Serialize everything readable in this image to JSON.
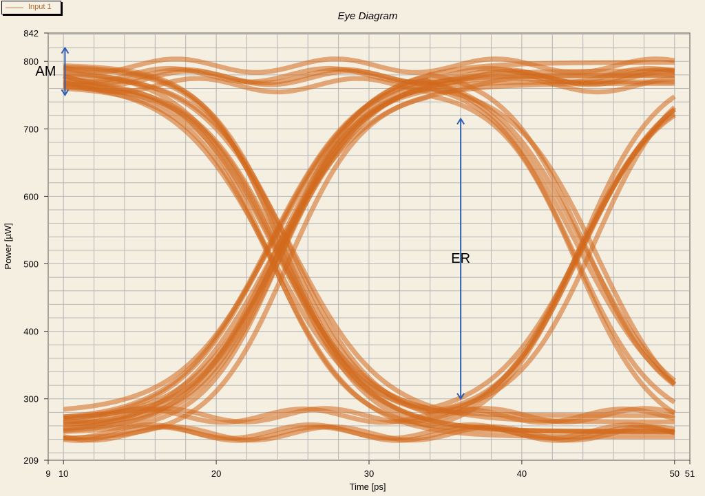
{
  "legend": {
    "entry": "Input 1"
  },
  "chart_data": {
    "type": "line",
    "title": "Eye Diagram",
    "xlabel": "Time [ps]",
    "ylabel": "Power [µW]",
    "xlim": [
      9,
      51
    ],
    "ylim": [
      209,
      842
    ],
    "x_ticks": [
      9,
      10,
      20,
      30,
      40,
      50,
      51
    ],
    "y_ticks": [
      209,
      300,
      400,
      500,
      600,
      700,
      800,
      842
    ],
    "grid": true,
    "series": [
      {
        "name": "Input 1",
        "color": "#d2691e",
        "level_one": 780,
        "level_zero": 260,
        "crossing_times": [
          24.2,
          44.2
        ],
        "crossing_level": 480
      }
    ],
    "annotations": [
      {
        "text": "AM",
        "x": 10.1,
        "y1": 750,
        "y2": 820
      },
      {
        "text": "ER",
        "x": 36,
        "y1": 300,
        "y2": 715
      }
    ]
  }
}
